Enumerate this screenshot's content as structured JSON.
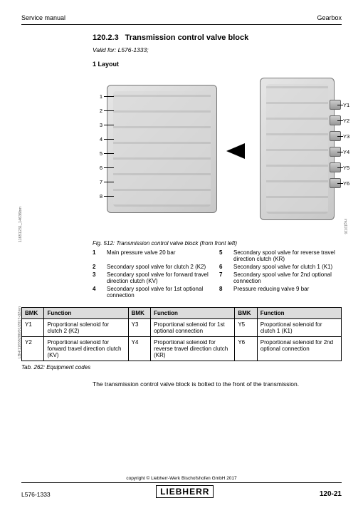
{
  "header": {
    "left": "Service manual",
    "right": "Gearbox"
  },
  "section": {
    "number": "120.2.3",
    "title": "Transmission control valve block"
  },
  "valid_for": "Valid for: L576-1333;",
  "layout_heading": "1 Layout",
  "left_numbers": [
    "1",
    "2",
    "3",
    "4",
    "5",
    "6",
    "7",
    "8"
  ],
  "y_labels": [
    "Y1",
    "Y2",
    "Y3",
    "Y4",
    "Y5",
    "Y6"
  ],
  "img_code": "img11016",
  "fig_caption": "Fig. 512: Transmission control valve block (from front left)",
  "legend": [
    {
      "n": "1",
      "t": "Main pressure valve 20 bar"
    },
    {
      "n": "5",
      "t": "Secondary spool valve for reverse travel direction clutch (KR)"
    },
    {
      "n": "2",
      "t": "Secondary spool valve for clutch 2 (K2)"
    },
    {
      "n": "6",
      "t": "Secondary spool valve for clutch 1 (K1)"
    },
    {
      "n": "3",
      "t": "Secondary spool valve for forward travel direction clutch (KV)"
    },
    {
      "n": "7",
      "t": "Secondary spool valve for 2nd optional connection"
    },
    {
      "n": "4",
      "t": "Secondary spool valve for 1st optional connection"
    },
    {
      "n": "8",
      "t": "Pressure reducing valve 9 bar"
    }
  ],
  "table": {
    "headers": [
      "BMK",
      "Function",
      "BMK",
      "Function",
      "BMK",
      "Function"
    ],
    "rows": [
      [
        "Y1",
        "Proportional solenoid for clutch 2 (K2)",
        "Y3",
        "Proportional solenoid for 1st optional connection",
        "Y5",
        "Proportional solenoid for clutch 1 (K1)"
      ],
      [
        "Y2",
        "Proportional solenoid for forward travel direction clutch (KV)",
        "Y4",
        "Proportional solenoid for reverse travel direction clutch (KR)",
        "Y6",
        "Proportional solenoid for 2nd optional connection"
      ]
    ]
  },
  "tab_caption": "Tab. 262: Equipment codes",
  "body_text": "The transmission control valve block is bolted to the front of the transmission.",
  "side_code1": "LBH/11658280/01/2017-02/en",
  "side_code2": "11651231_14636bm",
  "footer": {
    "copyright": "copyright © Liebherr-Werk Bischofshofen GmbH 2017",
    "doc": "L576-1333",
    "brand": "LIEBHERR",
    "page": "120-21"
  },
  "colors": {
    "grey_bg": "#dcdcdc"
  }
}
